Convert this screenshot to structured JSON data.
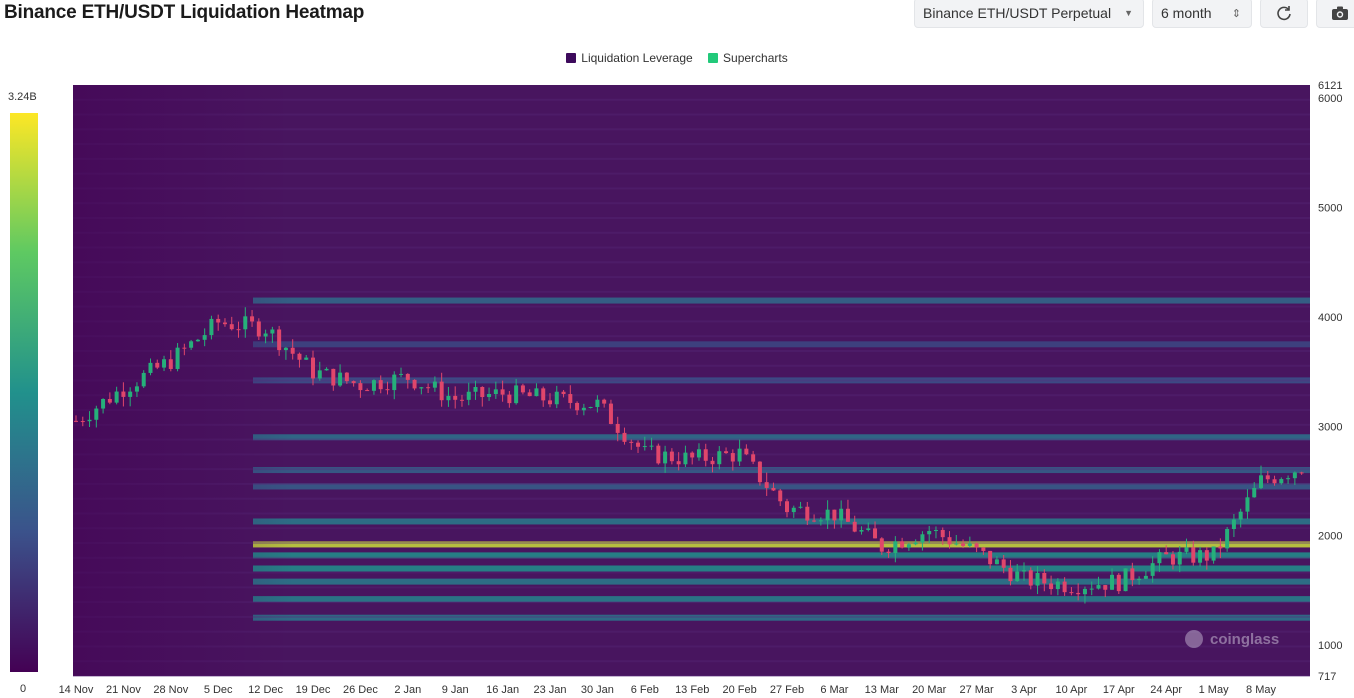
{
  "page": {
    "title": "Binance ETH/USDT Liquidation Heatmap"
  },
  "controls": {
    "pair_select": "Binance ETH/USDT Perpetual",
    "range_select": "6 month",
    "refresh_icon": "refresh-icon",
    "camera_icon": "camera-icon"
  },
  "legend": {
    "items": [
      {
        "label": "Liquidation Leverage",
        "color": "#3d0a5c"
      },
      {
        "label": "Supercharts",
        "color": "#22c97a"
      }
    ]
  },
  "watermark": "coinglass",
  "colorbar": {
    "max_label": "3.24B",
    "min_label": "0",
    "colors": [
      "#440154",
      "#3b528b",
      "#21918c",
      "#5ec962",
      "#fde725"
    ]
  },
  "chart_data": {
    "type": "heatmap",
    "title": "Binance ETH/USDT Liquidation Heatmap",
    "value_range": [
      0,
      3240000000
    ],
    "ylim": [
      717,
      6121
    ],
    "y_ticks": [
      717,
      1000,
      2000,
      3000,
      4000,
      5000,
      6000,
      6121
    ],
    "x_ticks": [
      "14 Nov",
      "21 Nov",
      "28 Nov",
      "5 Dec",
      "12 Dec",
      "19 Dec",
      "26 Dec",
      "2 Jan",
      "9 Jan",
      "16 Jan",
      "23 Jan",
      "30 Jan",
      "6 Feb",
      "13 Feb",
      "20 Feb",
      "27 Feb",
      "6 Mar",
      "13 Mar",
      "20 Mar",
      "27 Mar",
      "3 Apr",
      "10 Apr",
      "17 Apr",
      "24 Apr",
      "1 May",
      "8 May"
    ],
    "price_series": {
      "name": "Supercharts",
      "x": [
        "14 Nov",
        "21 Nov",
        "28 Nov",
        "5 Dec",
        "12 Dec",
        "19 Dec",
        "26 Dec",
        "2 Jan",
        "9 Jan",
        "16 Jan",
        "23 Jan",
        "30 Jan",
        "6 Feb",
        "13 Feb",
        "20 Feb",
        "27 Feb",
        "6 Mar",
        "13 Mar",
        "20 Mar",
        "27 Mar",
        "3 Apr",
        "10 Apr",
        "17 Apr",
        "24 Apr",
        "1 May",
        "8 May",
        "11 May"
      ],
      "values": [
        3050,
        3350,
        3600,
        3950,
        3900,
        3500,
        3380,
        3450,
        3250,
        3300,
        3250,
        3200,
        2750,
        2700,
        2750,
        2250,
        2200,
        1900,
        2050,
        1850,
        1600,
        1550,
        1580,
        1800,
        1820,
        2500,
        2650
      ]
    },
    "liquidation_bands": [
      {
        "price": 4150,
        "intensity": 0.35
      },
      {
        "price": 3750,
        "intensity": 0.22
      },
      {
        "price": 3420,
        "intensity": 0.25
      },
      {
        "price": 2900,
        "intensity": 0.38
      },
      {
        "price": 2600,
        "intensity": 0.32
      },
      {
        "price": 2450,
        "intensity": 0.3
      },
      {
        "price": 2130,
        "intensity": 0.42
      },
      {
        "price": 1920,
        "intensity": 0.92
      },
      {
        "price": 1820,
        "intensity": 0.5
      },
      {
        "price": 1700,
        "intensity": 0.5
      },
      {
        "price": 1580,
        "intensity": 0.42
      },
      {
        "price": 1420,
        "intensity": 0.45
      },
      {
        "price": 1250,
        "intensity": 0.4
      }
    ]
  }
}
